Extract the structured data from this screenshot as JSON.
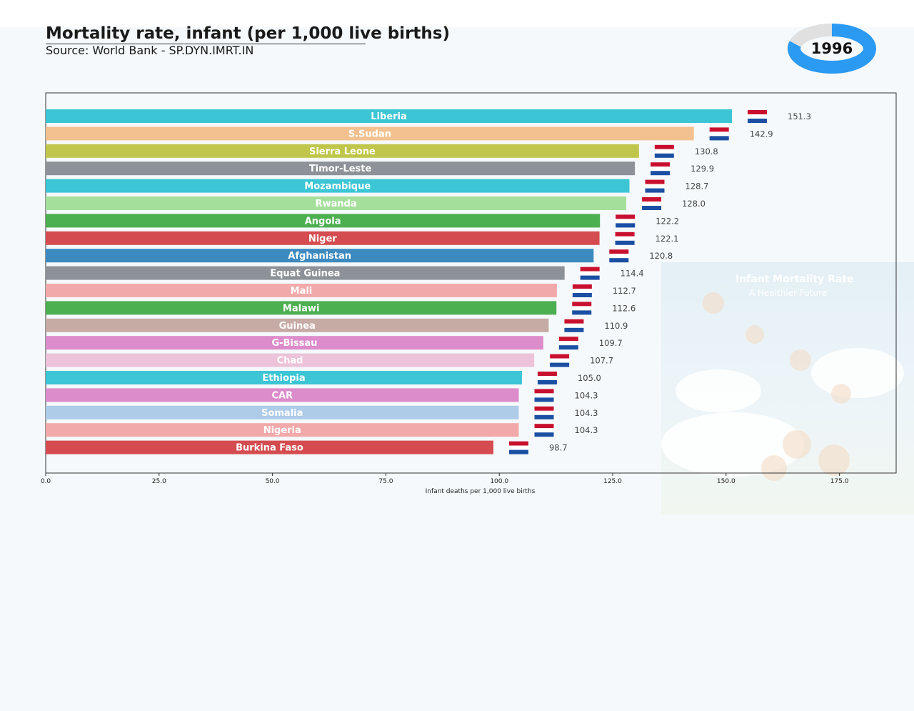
{
  "header": {
    "title": "Mortality rate, infant (per 1,000 live births)",
    "source": "Source: World Bank - SP.DYN.IMRT.IN",
    "year": "1996"
  },
  "decoration": {
    "title": "Infant Mortality Rate",
    "subtitle": "A Healthier Future"
  },
  "year_progress": 0.79,
  "colors": {
    "progress_fill": "#2b9af3",
    "progress_track": "#e0e0e0",
    "frame": "#333333"
  },
  "chart_data": {
    "type": "bar",
    "orientation": "horizontal",
    "xlabel": "Infant deaths per 1,000 live births",
    "xlim": [
      0,
      187.5
    ],
    "xticks": [
      "0.0",
      "25.0",
      "50.0",
      "75.0",
      "100.0",
      "125.0",
      "150.0",
      "175.0"
    ],
    "grid": false,
    "categories": [
      "Liberia",
      "S.Sudan",
      "Sierra Leone",
      "Timor-Leste",
      "Mozambique",
      "Rwanda",
      "Angola",
      "Niger",
      "Afghanistan",
      "Equat Guinea",
      "Mali",
      "Malawi",
      "Guinea",
      "G-Bissau",
      "Chad",
      "Ethiopia",
      "CAR",
      "Somalia",
      "Nigeria",
      "Burkina Faso"
    ],
    "values": [
      151.3,
      142.9,
      130.8,
      129.9,
      128.7,
      128.0,
      122.2,
      122.1,
      120.8,
      114.4,
      112.7,
      112.6,
      110.9,
      109.7,
      107.7,
      105.0,
      104.3,
      104.3,
      104.3,
      98.7
    ],
    "value_labels": [
      "151.3",
      "142.9",
      "130.8",
      "129.9",
      "128.7",
      "128.0",
      "122.2",
      "122.1",
      "120.8",
      "114.4",
      "112.7",
      "112.6",
      "110.9",
      "109.7",
      "107.7",
      "105.0",
      "104.3",
      "104.3",
      "104.3",
      "98.7"
    ],
    "bar_colors": [
      "#3cc5d4",
      "#f3c18f",
      "#c0c64b",
      "#8c9297",
      "#3cc5d4",
      "#a5df9c",
      "#4caf50",
      "#d44c4f",
      "#3c8abf",
      "#8c9297",
      "#f2a9a9",
      "#4caf50",
      "#c6aba4",
      "#dc8bcb",
      "#ecc3d9",
      "#3cc5d4",
      "#dc8bcb",
      "#aecbe8",
      "#f2a9a9",
      "#d44c4f"
    ],
    "flags": [
      "flag-liberia",
      "flag-south-sudan",
      "flag-sierra-leone",
      "flag-timor-leste",
      "flag-mozambique",
      "flag-rwanda",
      "flag-angola",
      "flag-niger",
      "flag-afghanistan",
      "flag-equatorial-guinea",
      "flag-mali",
      "flag-malawi",
      "flag-guinea",
      "flag-guinea-bissau",
      "flag-chad",
      "flag-ethiopia",
      "flag-car",
      "flag-somalia",
      "flag-nigeria",
      "flag-burkina-faso"
    ]
  }
}
